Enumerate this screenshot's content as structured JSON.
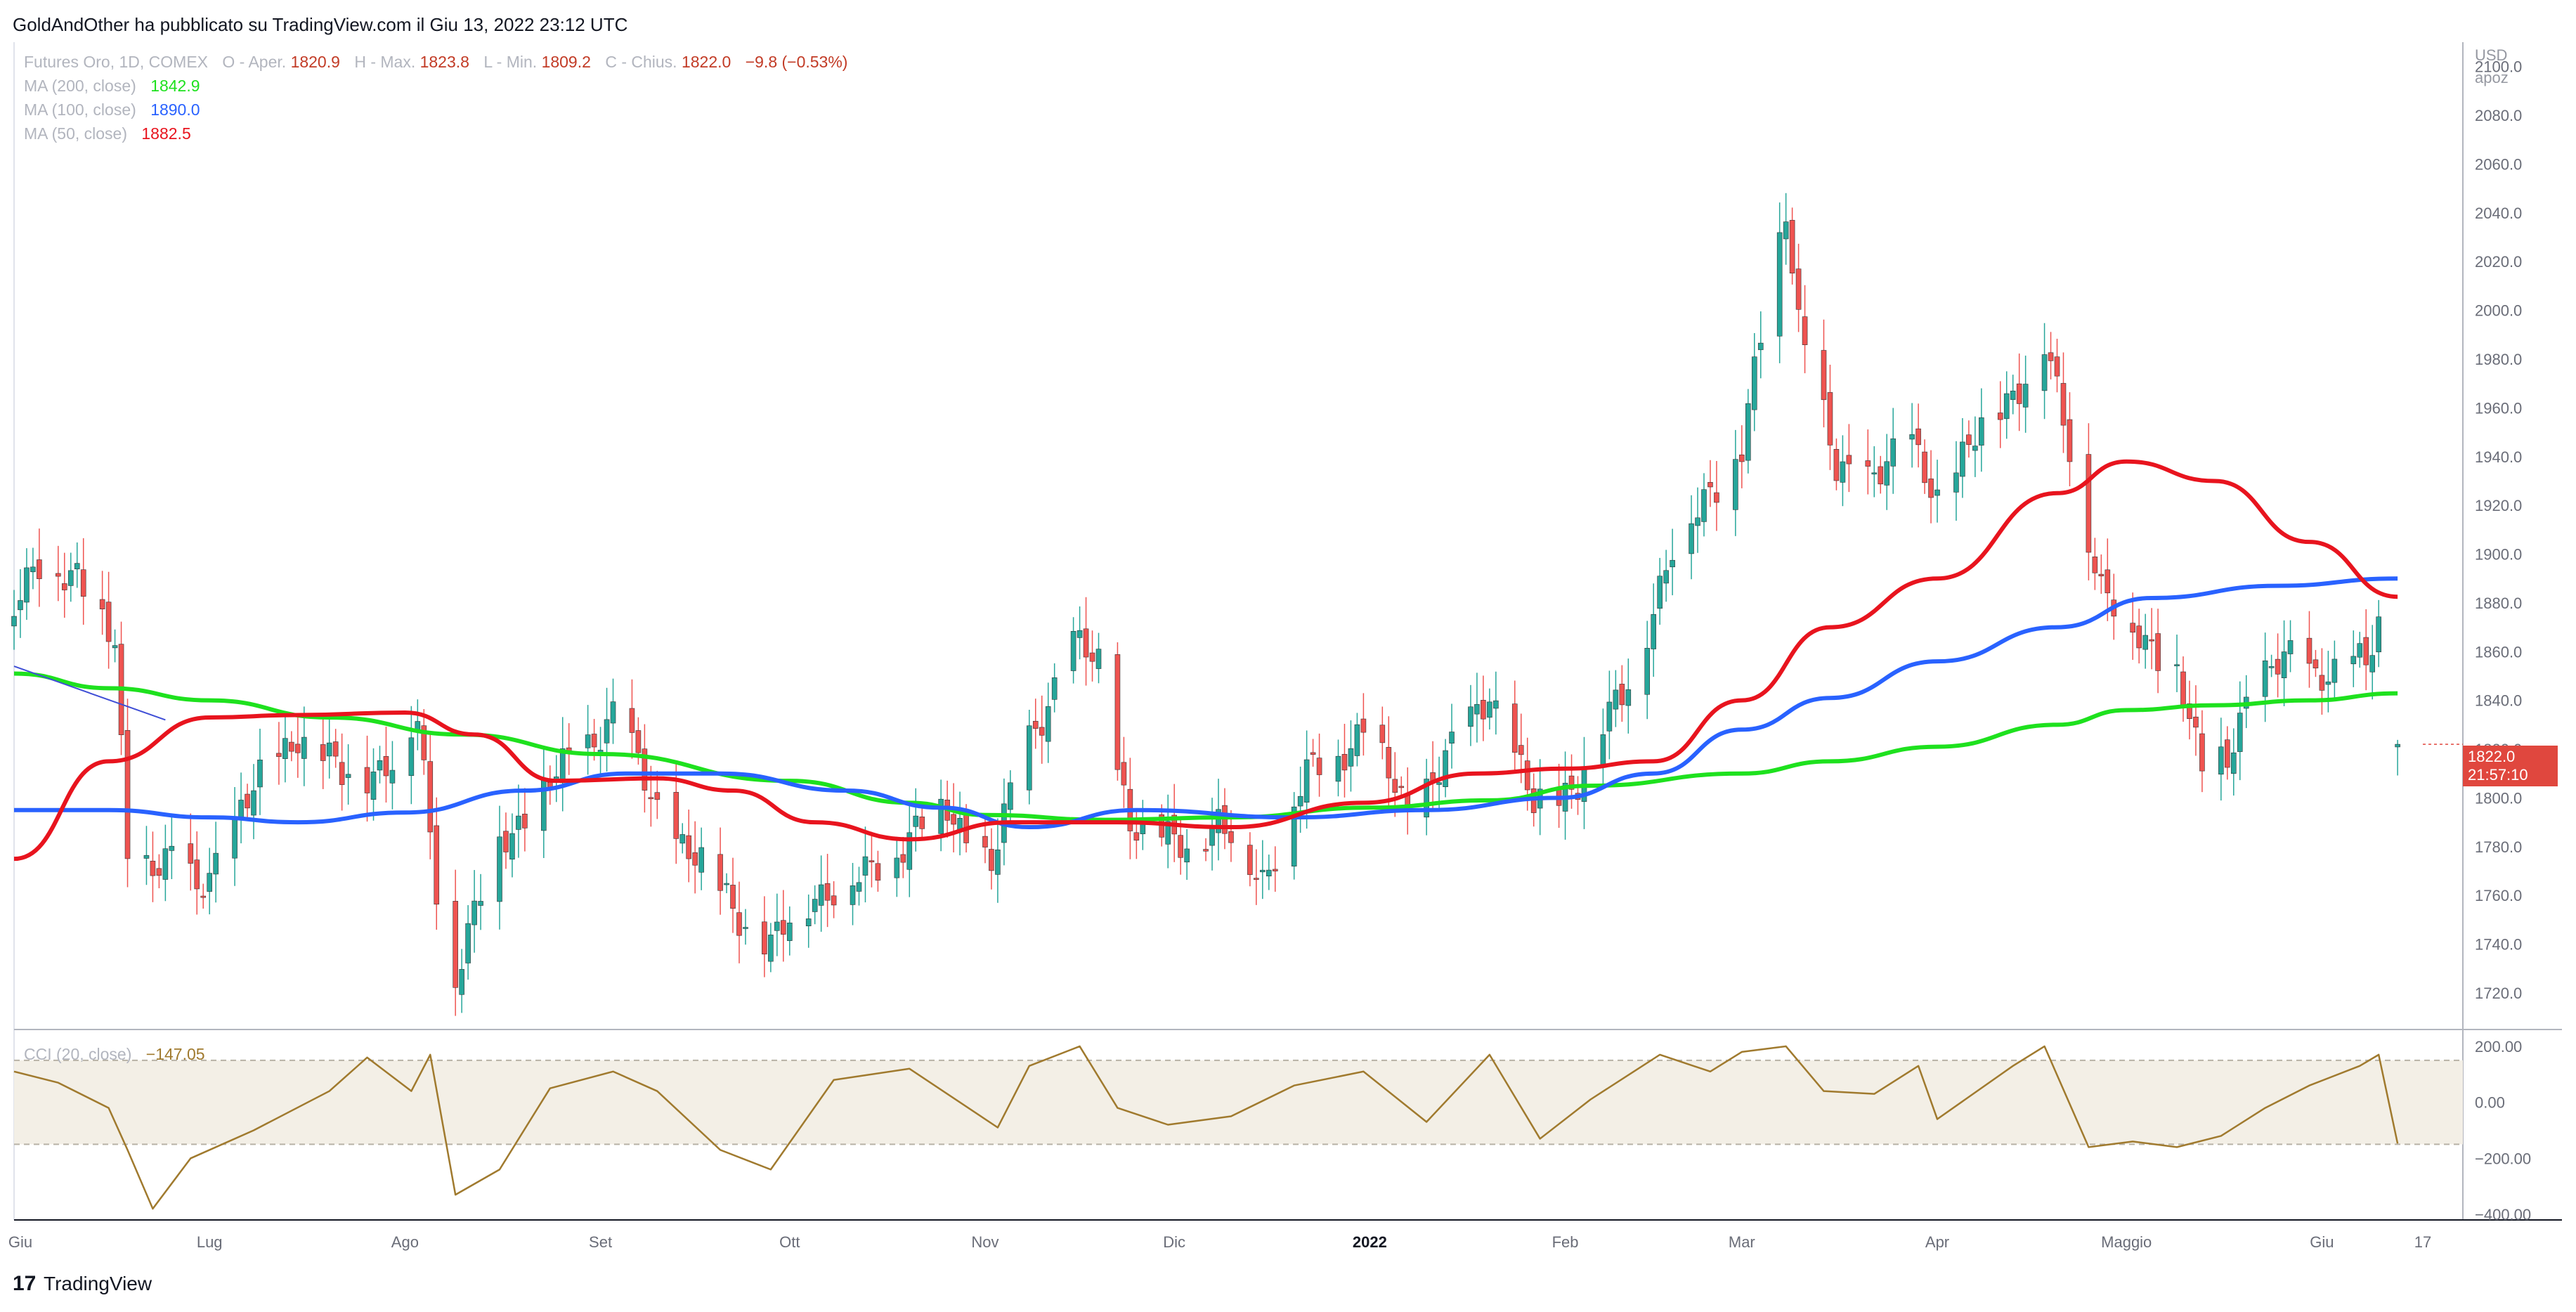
{
  "header": {
    "publisher_line": "GoldAndOther ha pubblicato su TradingView.com il Giu 13, 2022 23:12 UTC"
  },
  "legend": {
    "symbol": "Futures Oro, 1D, COMEX",
    "ohlc": {
      "o_label": "O - Aper.",
      "o_value": "1820.9",
      "h_label": "H - Max.",
      "h_value": "1823.8",
      "l_label": "L - Min.",
      "l_value": "1809.2",
      "c_label": "C - Chius.",
      "c_value": "1822.0",
      "change": "−9.8 (−0.53%)"
    },
    "indicators": [
      {
        "label": "MA (200, close)",
        "value": "1842.9",
        "color": "#1ee11e"
      },
      {
        "label": "MA (100, close)",
        "value": "1890.0",
        "color": "#2962ff"
      },
      {
        "label": "MA (50, close)",
        "value": "1882.5",
        "color": "#e8141e"
      }
    ]
  },
  "price_axis": {
    "currency": "USD",
    "scale_mode": "apoz",
    "last_price": "1822.0",
    "countdown": "21:57:10",
    "last_price_color": "#e0473e"
  },
  "cci": {
    "label": "CCI (20, close)",
    "value": "−147.05",
    "color": "#a07a2e",
    "band_color": "#f3efe6"
  },
  "footer": {
    "brand": "TradingView"
  },
  "chart_data": [
    {
      "type": "candlestick",
      "title": "Futures Oro, 1D, COMEX",
      "ylabel": "USD",
      "ylim": [
        1705,
        2110
      ],
      "yticks": [
        2100,
        2080,
        2060,
        2040,
        2020,
        2000,
        1980,
        1960,
        1940,
        1920,
        1900,
        1880,
        1860,
        1840,
        1820,
        1800,
        1780,
        1760,
        1740,
        1720
      ],
      "ytick_labels": [
        "2100.0",
        "2080.0",
        "2060.0",
        "2040.0",
        "2020.0",
        "2000.0",
        "1980.0",
        "1960.0",
        "1940.0",
        "1920.0",
        "1900.0",
        "1880.0",
        "1860.0",
        "1840.0",
        "1820.0",
        "1800.0",
        "1780.0",
        "1760.0",
        "1740.0",
        "1720.0"
      ],
      "x_range": [
        "2021-05-31",
        "2022-06-17"
      ],
      "xticks": [
        {
          "label": "Giu",
          "date": "2021-06-01"
        },
        {
          "label": "Lug",
          "date": "2021-07-01"
        },
        {
          "label": "Ago",
          "date": "2021-08-01"
        },
        {
          "label": "Set",
          "date": "2021-09-01"
        },
        {
          "label": "Ott",
          "date": "2021-10-01"
        },
        {
          "label": "Nov",
          "date": "2021-11-01"
        },
        {
          "label": "Dic",
          "date": "2021-12-01"
        },
        {
          "label": "2022",
          "date": "2022-01-01"
        },
        {
          "label": "Feb",
          "date": "2022-02-01"
        },
        {
          "label": "Mar",
          "date": "2022-03-01"
        },
        {
          "label": "Apr",
          "date": "2022-04-01"
        },
        {
          "label": "Maggio",
          "date": "2022-05-01"
        },
        {
          "label": "Giu",
          "date": "2022-06-01"
        },
        {
          "label": "17",
          "date": "2022-06-17"
        }
      ],
      "up_color": "#26a69a",
      "down_color": "#ef5350",
      "anchors": [
        [
          "2021-05-31",
          1880
        ],
        [
          "2021-06-04",
          1892
        ],
        [
          "2021-06-10",
          1895
        ],
        [
          "2021-06-16",
          1860
        ],
        [
          "2021-06-18",
          1775
        ],
        [
          "2021-06-25",
          1775
        ],
        [
          "2021-06-29",
          1760
        ],
        [
          "2021-07-06",
          1795
        ],
        [
          "2021-07-15",
          1828
        ],
        [
          "2021-07-22",
          1808
        ],
        [
          "2021-07-30",
          1815
        ],
        [
          "2021-08-03",
          1830
        ],
        [
          "2021-08-06",
          1765
        ],
        [
          "2021-08-09",
          1728
        ],
        [
          "2021-08-16",
          1782
        ],
        [
          "2021-08-24",
          1805
        ],
        [
          "2021-09-03",
          1835
        ],
        [
          "2021-09-10",
          1795
        ],
        [
          "2021-09-20",
          1762
        ],
        [
          "2021-09-28",
          1738
        ],
        [
          "2021-10-05",
          1762
        ],
        [
          "2021-10-12",
          1765
        ],
        [
          "2021-10-20",
          1785
        ],
        [
          "2021-10-26",
          1795
        ],
        [
          "2021-11-02",
          1772
        ],
        [
          "2021-11-08",
          1825
        ],
        [
          "2021-11-15",
          1862
        ],
        [
          "2021-11-19",
          1855
        ],
        [
          "2021-11-24",
          1790
        ],
        [
          "2021-12-01",
          1782
        ],
        [
          "2021-12-08",
          1788
        ],
        [
          "2021-12-15",
          1768
        ],
        [
          "2021-12-22",
          1808
        ],
        [
          "2021-12-31",
          1828
        ],
        [
          "2022-01-07",
          1795
        ],
        [
          "2022-01-14",
          1818
        ],
        [
          "2022-01-20",
          1845
        ],
        [
          "2022-01-27",
          1795
        ],
        [
          "2022-02-03",
          1808
        ],
        [
          "2022-02-10",
          1842
        ],
        [
          "2022-02-18",
          1900
        ],
        [
          "2022-02-24",
          1928
        ],
        [
          "2022-03-01",
          1942
        ],
        [
          "2022-03-08",
          2045
        ],
        [
          "2022-03-10",
          1998
        ],
        [
          "2022-03-16",
          1932
        ],
        [
          "2022-03-22",
          1935
        ],
        [
          "2022-03-28",
          1943
        ],
        [
          "2022-04-01",
          1925
        ],
        [
          "2022-04-08",
          1950
        ],
        [
          "2022-04-18",
          1985
        ],
        [
          "2022-04-22",
          1942
        ],
        [
          "2022-04-27",
          1888
        ],
        [
          "2022-05-02",
          1866
        ],
        [
          "2022-05-09",
          1855
        ],
        [
          "2022-05-13",
          1808
        ],
        [
          "2022-05-17",
          1818
        ],
        [
          "2022-05-20",
          1842
        ],
        [
          "2022-05-27",
          1857
        ],
        [
          "2022-06-03",
          1851
        ],
        [
          "2022-06-08",
          1855
        ],
        [
          "2022-06-10",
          1873
        ],
        [
          "2022-06-13",
          1822
        ]
      ],
      "last_candle": {
        "date": "2022-06-13",
        "open": 1820.9,
        "high": 1823.8,
        "low": 1809.2,
        "close": 1822.0
      }
    },
    {
      "type": "line",
      "name": "MA (200, close)",
      "color": "#1ee11e",
      "last_value": 1842.9,
      "points": [
        [
          "2021-05-31",
          1851
        ],
        [
          "2021-06-15",
          1845
        ],
        [
          "2021-07-01",
          1840
        ],
        [
          "2021-07-20",
          1833
        ],
        [
          "2021-08-10",
          1826
        ],
        [
          "2021-09-01",
          1818
        ],
        [
          "2021-10-01",
          1807
        ],
        [
          "2021-10-20",
          1798
        ],
        [
          "2021-11-01",
          1793
        ],
        [
          "2021-11-20",
          1791
        ],
        [
          "2021-12-10",
          1792
        ],
        [
          "2022-01-01",
          1796
        ],
        [
          "2022-01-20",
          1799
        ],
        [
          "2022-02-05",
          1805
        ],
        [
          "2022-03-01",
          1810
        ],
        [
          "2022-03-15",
          1815
        ],
        [
          "2022-04-01",
          1821
        ],
        [
          "2022-04-20",
          1830
        ],
        [
          "2022-05-01",
          1836
        ],
        [
          "2022-05-15",
          1838
        ],
        [
          "2022-05-30",
          1840
        ],
        [
          "2022-06-13",
          1842.9
        ]
      ]
    },
    {
      "type": "line",
      "name": "MA (100, close)",
      "color": "#2962ff",
      "last_value": 1890.0,
      "points": [
        [
          "2021-05-31",
          1795
        ],
        [
          "2021-06-15",
          1795
        ],
        [
          "2021-07-01",
          1792
        ],
        [
          "2021-07-15",
          1790
        ],
        [
          "2021-08-01",
          1794
        ],
        [
          "2021-08-20",
          1803
        ],
        [
          "2021-09-05",
          1810
        ],
        [
          "2021-09-20",
          1810
        ],
        [
          "2021-10-10",
          1803
        ],
        [
          "2021-10-25",
          1796
        ],
        [
          "2021-11-08",
          1788
        ],
        [
          "2021-11-25",
          1795
        ],
        [
          "2021-12-20",
          1792
        ],
        [
          "2022-01-10",
          1795
        ],
        [
          "2022-01-31",
          1800
        ],
        [
          "2022-02-15",
          1810
        ],
        [
          "2022-03-01",
          1828
        ],
        [
          "2022-03-15",
          1841
        ],
        [
          "2022-04-01",
          1856
        ],
        [
          "2022-04-20",
          1870
        ],
        [
          "2022-05-05",
          1882
        ],
        [
          "2022-05-25",
          1887
        ],
        [
          "2022-06-13",
          1890
        ]
      ]
    },
    {
      "type": "line",
      "name": "MA (50, close)",
      "color": "#e8141e",
      "last_value": 1882.5,
      "points": [
        [
          "2021-05-31",
          1775
        ],
        [
          "2021-06-15",
          1815
        ],
        [
          "2021-07-01",
          1833
        ],
        [
          "2021-07-15",
          1834
        ],
        [
          "2021-08-01",
          1835
        ],
        [
          "2021-08-12",
          1826
        ],
        [
          "2021-08-25",
          1807
        ],
        [
          "2021-09-10",
          1808
        ],
        [
          "2021-09-22",
          1803
        ],
        [
          "2021-10-05",
          1790
        ],
        [
          "2021-10-20",
          1783
        ],
        [
          "2021-11-05",
          1790
        ],
        [
          "2021-11-22",
          1790
        ],
        [
          "2021-12-10",
          1788
        ],
        [
          "2021-12-31",
          1798
        ],
        [
          "2022-01-18",
          1810
        ],
        [
          "2022-02-01",
          1812
        ],
        [
          "2022-02-15",
          1815
        ],
        [
          "2022-03-01",
          1840
        ],
        [
          "2022-03-15",
          1870
        ],
        [
          "2022-04-01",
          1890
        ],
        [
          "2022-04-20",
          1925
        ],
        [
          "2022-05-01",
          1938
        ],
        [
          "2022-05-15",
          1930
        ],
        [
          "2022-05-30",
          1905
        ],
        [
          "2022-06-13",
          1882.5
        ]
      ]
    },
    {
      "type": "line",
      "name": "trendline",
      "color": "#3f4ed6",
      "points": [
        [
          "2021-05-31",
          1854
        ],
        [
          "2021-06-24",
          1832
        ]
      ]
    },
    {
      "type": "line",
      "title": "CCI (20, close)",
      "color": "#a07a2e",
      "ylim": [
        -420,
        260
      ],
      "yticks": [
        200,
        0,
        -200,
        -400
      ],
      "ytick_labels": [
        "200.00",
        "0.00",
        "−200.00",
        "−400.00"
      ],
      "band": [
        -150,
        150
      ],
      "last_value": -147.05,
      "points": [
        [
          "2021-05-31",
          110
        ],
        [
          "2021-06-07",
          70
        ],
        [
          "2021-06-15",
          -20
        ],
        [
          "2021-06-18",
          -170
        ],
        [
          "2021-06-22",
          -380
        ],
        [
          "2021-06-28",
          -200
        ],
        [
          "2021-07-08",
          -100
        ],
        [
          "2021-07-20",
          40
        ],
        [
          "2021-07-26",
          160
        ],
        [
          "2021-08-02",
          40
        ],
        [
          "2021-08-05",
          170
        ],
        [
          "2021-08-09",
          -330
        ],
        [
          "2021-08-16",
          -240
        ],
        [
          "2021-08-24",
          50
        ],
        [
          "2021-09-03",
          110
        ],
        [
          "2021-09-10",
          40
        ],
        [
          "2021-09-20",
          -170
        ],
        [
          "2021-09-28",
          -240
        ],
        [
          "2021-10-08",
          80
        ],
        [
          "2021-10-20",
          120
        ],
        [
          "2021-11-03",
          -90
        ],
        [
          "2021-11-08",
          130
        ],
        [
          "2021-11-16",
          200
        ],
        [
          "2021-11-22",
          -20
        ],
        [
          "2021-11-30",
          -80
        ],
        [
          "2021-12-10",
          -50
        ],
        [
          "2021-12-20",
          60
        ],
        [
          "2021-12-31",
          110
        ],
        [
          "2022-01-10",
          -70
        ],
        [
          "2022-01-20",
          170
        ],
        [
          "2022-01-28",
          -130
        ],
        [
          "2022-02-05",
          10
        ],
        [
          "2022-02-16",
          170
        ],
        [
          "2022-02-24",
          110
        ],
        [
          "2022-03-01",
          180
        ],
        [
          "2022-03-08",
          200
        ],
        [
          "2022-03-14",
          40
        ],
        [
          "2022-03-22",
          30
        ],
        [
          "2022-03-29",
          130
        ],
        [
          "2022-04-01",
          -60
        ],
        [
          "2022-04-13",
          130
        ],
        [
          "2022-04-18",
          200
        ],
        [
          "2022-04-25",
          -160
        ],
        [
          "2022-05-02",
          -140
        ],
        [
          "2022-05-09",
          -160
        ],
        [
          "2022-05-16",
          -120
        ],
        [
          "2022-05-23",
          -20
        ],
        [
          "2022-05-30",
          60
        ],
        [
          "2022-06-07",
          130
        ],
        [
          "2022-06-10",
          170
        ],
        [
          "2022-06-13",
          -147.05
        ]
      ]
    }
  ]
}
